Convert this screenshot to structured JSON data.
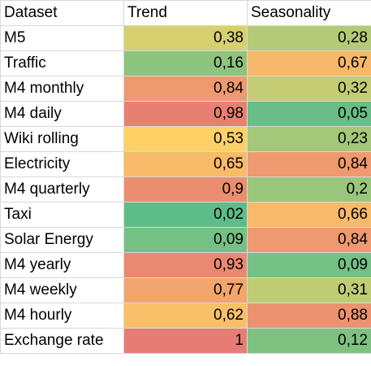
{
  "chart_data": {
    "type": "heatmap",
    "columns": [
      "Dataset",
      "Trend",
      "Seasonality"
    ],
    "rows": [
      {
        "dataset": "M5",
        "trend": "0,38",
        "seasonality": "0,28",
        "trend_value": 0.38,
        "seasonality_value": 0.28
      },
      {
        "dataset": "Traffic",
        "trend": "0,16",
        "seasonality": "0,67",
        "trend_value": 0.16,
        "seasonality_value": 0.67
      },
      {
        "dataset": "M4 monthly",
        "trend": "0,84",
        "seasonality": "0,32",
        "trend_value": 0.84,
        "seasonality_value": 0.32
      },
      {
        "dataset": "M4 daily",
        "trend": "0,98",
        "seasonality": "0,05",
        "trend_value": 0.98,
        "seasonality_value": 0.05
      },
      {
        "dataset": "Wiki rolling",
        "trend": "0,53",
        "seasonality": "0,23",
        "trend_value": 0.53,
        "seasonality_value": 0.23
      },
      {
        "dataset": "Electricity",
        "trend": "0,65",
        "seasonality": "0,84",
        "trend_value": 0.65,
        "seasonality_value": 0.84
      },
      {
        "dataset": "M4 quarterly",
        "trend": "0,9",
        "seasonality": "0,2",
        "trend_value": 0.9,
        "seasonality_value": 0.2
      },
      {
        "dataset": "Taxi",
        "trend": "0,02",
        "seasonality": "0,66",
        "trend_value": 0.02,
        "seasonality_value": 0.66
      },
      {
        "dataset": "Solar Energy",
        "trend": "0,09",
        "seasonality": "0,84",
        "trend_value": 0.09,
        "seasonality_value": 0.84
      },
      {
        "dataset": "M4 yearly",
        "trend": "0,93",
        "seasonality": "0,09",
        "trend_value": 0.93,
        "seasonality_value": 0.09
      },
      {
        "dataset": "M4 weekly",
        "trend": "0,77",
        "seasonality": "0,31",
        "trend_value": 0.77,
        "seasonality_value": 0.31
      },
      {
        "dataset": "M4 hourly",
        "trend": "0,62",
        "seasonality": "0,88",
        "trend_value": 0.62,
        "seasonality_value": 0.88
      },
      {
        "dataset": "Exchange rate",
        "trend": "1",
        "seasonality": "0,12",
        "trend_value": 1.0,
        "seasonality_value": 0.12
      }
    ],
    "color_scale": {
      "low": "#57bb8a",
      "mid": "#ffd666",
      "high": "#e67c73"
    }
  }
}
